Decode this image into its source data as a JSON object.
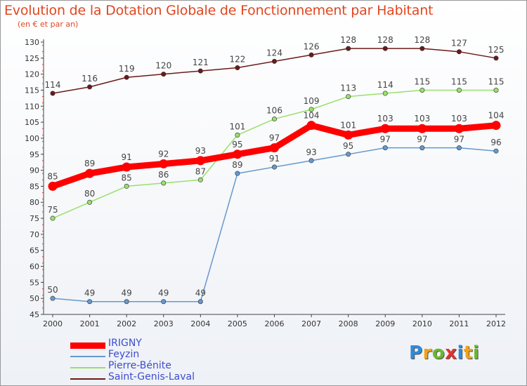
{
  "header": {
    "title": "Evolution de la Dotation Globale de Fonctionnement par Habitant",
    "subtitle": "(en € et par an)"
  },
  "brand": {
    "logo_text": "Proxiti",
    "letters": [
      {
        "ch": "P",
        "color": "#2f8bd8"
      },
      {
        "ch": "r",
        "color": "#f0a318"
      },
      {
        "ch": "o",
        "color": "#6ab82e"
      },
      {
        "ch": "x",
        "color": "#e4322b"
      },
      {
        "ch": "i",
        "color": "#2f8bd8"
      },
      {
        "ch": "t",
        "color": "#f0a318"
      },
      {
        "ch": "i",
        "color": "#6ab82e"
      }
    ]
  },
  "chart_data": {
    "type": "line",
    "title": "Evolution de la Dotation Globale de Fonctionnement par Habitant",
    "subtitle": "(en € et par an)",
    "xlabel": "",
    "ylabel": "",
    "ylim": [
      45,
      130
    ],
    "ytick_step": 5,
    "grid": false,
    "legend_position": "bottom-left",
    "categories": [
      "2000",
      "2001",
      "2002",
      "2003",
      "2004",
      "2005",
      "2006",
      "2007",
      "2008",
      "2009",
      "2010",
      "2011",
      "2012"
    ],
    "series": [
      {
        "name": "Saint-Genis-Laval",
        "color": "#6b1a1a",
        "values": [
          114,
          116,
          119,
          120,
          121,
          122,
          124,
          126,
          128,
          128,
          128,
          127,
          125
        ],
        "label_pos": "above"
      },
      {
        "name": "Pierre-Bénite",
        "color": "#99e06b",
        "values": [
          75,
          80,
          85,
          86,
          87,
          101,
          106,
          109,
          113,
          114,
          115,
          115,
          115
        ],
        "label_pos": "above"
      },
      {
        "name": "IRIGNY",
        "color": "#ff0000",
        "values": [
          85,
          89,
          91,
          92,
          93,
          95,
          97,
          104,
          101,
          103,
          103,
          103,
          104
        ],
        "label_pos": "above",
        "bold": true
      },
      {
        "name": "Feyzin",
        "color": "#6699cc",
        "values": [
          50,
          49,
          49,
          49,
          49,
          89,
          91,
          93,
          95,
          97,
          97,
          97,
          96
        ],
        "label_pos": "above"
      }
    ],
    "legend_order": [
      "IRIGNY",
      "Feyzin",
      "Pierre-Bénite",
      "Saint-Genis-Laval"
    ]
  }
}
